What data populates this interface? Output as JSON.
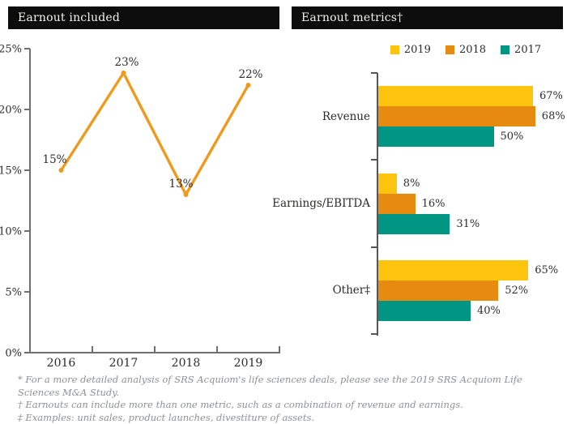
{
  "colors": {
    "title_bg": "#0c0c0c",
    "title_text": "#f4f3ef",
    "axis": "#6e6f72",
    "bar_axis": "#55565a",
    "label_text": "#2e2d2c",
    "footnote_text": "#8e9093",
    "series_2019": "#FCC40D",
    "series_2018": "#E78B10",
    "series_2017": "#009683",
    "line": "#EF9A1D"
  },
  "chart_data": [
    {
      "type": "line",
      "title": "Earnout included",
      "x": [
        "2016",
        "2017",
        "2018",
        "2019"
      ],
      "values": [
        15,
        23,
        13,
        22
      ],
      "point_labels": [
        "15%",
        "23%",
        "13%",
        "22%"
      ],
      "xlabel": "",
      "ylabel": "",
      "ylim": [
        0,
        25
      ],
      "ytick_labels": [
        "0%",
        "5%",
        "10%",
        "15%",
        "20%",
        "25%"
      ],
      "grid": false,
      "line_color": "#EF9A1D"
    },
    {
      "type": "bar",
      "title": "Earnout metrics†",
      "orientation": "horizontal",
      "categories": [
        "Revenue",
        "Earnings/EBITDA",
        "Other‡"
      ],
      "series": [
        {
          "name": "2019",
          "color": "#FCC40D",
          "values": [
            67,
            8,
            65
          ],
          "labels": [
            "67%",
            "8%",
            "65%"
          ]
        },
        {
          "name": "2018",
          "color": "#E78B10",
          "values": [
            68,
            16,
            52
          ],
          "labels": [
            "68%",
            "16%",
            "52%"
          ]
        },
        {
          "name": "2017",
          "color": "#009683",
          "values": [
            50,
            31,
            40
          ],
          "labels": [
            "50%",
            "31%",
            "40%"
          ]
        }
      ],
      "value_axis_max": 80,
      "legend_position": "top",
      "grid": false
    }
  ],
  "footnotes": [
    "* For a more detailed analysis of SRS Acquiom's life sciences deals, please see the 2019 SRS Acquiom Life Sciences M&A Study.",
    "† Earnouts can include more than one metric, such as a combination of revenue and earnings.",
    "‡ Examples: unit sales, product launches, divestiture of assets."
  ]
}
